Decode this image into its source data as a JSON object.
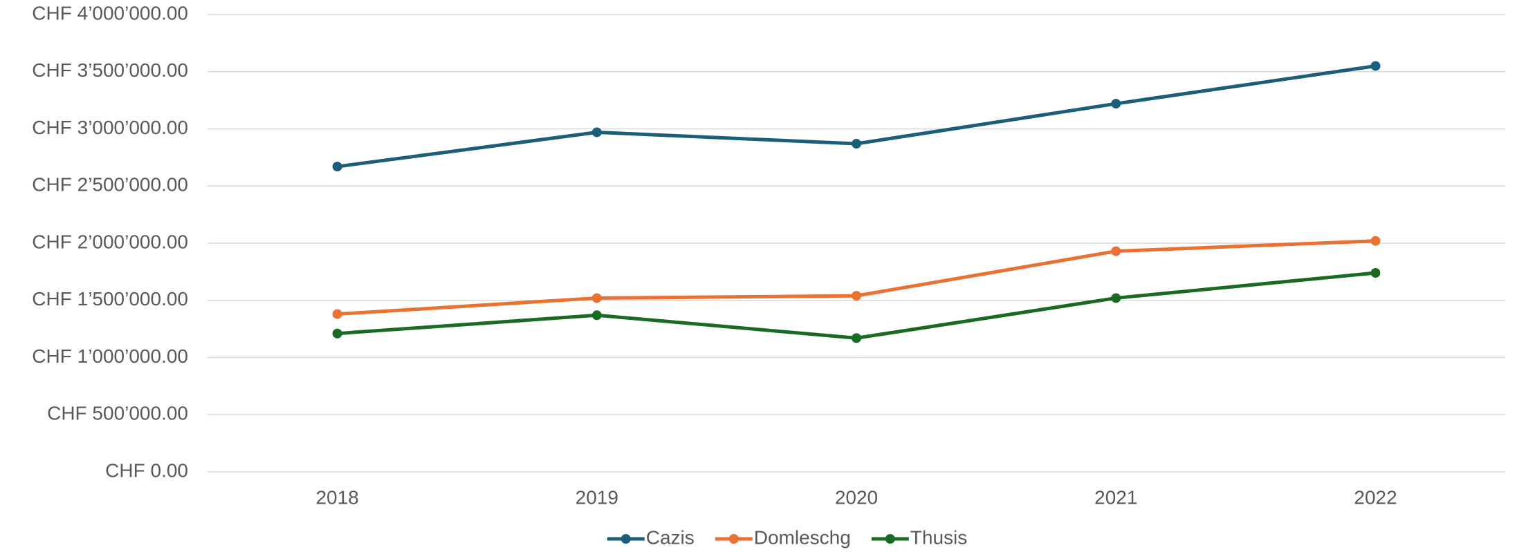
{
  "chart_data": {
    "type": "line",
    "categories": [
      "2018",
      "2019",
      "2020",
      "2021",
      "2022"
    ],
    "series": [
      {
        "name": "Cazis",
        "color": "#1b5e7b",
        "values": [
          2670000,
          2970000,
          2870000,
          3220000,
          3550000
        ]
      },
      {
        "name": "Domleschg",
        "color": "#e97132",
        "values": [
          1380000,
          1520000,
          1540000,
          1930000,
          2020000
        ]
      },
      {
        "name": "Thusis",
        "color": "#196b24",
        "values": [
          1210000,
          1370000,
          1170000,
          1520000,
          1740000
        ]
      }
    ],
    "ylim": [
      0,
      4000000
    ],
    "yticks": [
      {
        "value": 0,
        "label": "CHF 0.00"
      },
      {
        "value": 500000,
        "label": "CHF 500’000.00"
      },
      {
        "value": 1000000,
        "label": "CHF 1’000’000.00"
      },
      {
        "value": 1500000,
        "label": "CHF 1’500’000.00"
      },
      {
        "value": 2000000,
        "label": "CHF 2’000’000.00"
      },
      {
        "value": 2500000,
        "label": "CHF 2’500’000.00"
      },
      {
        "value": 3000000,
        "label": "CHF 3’000’000.00"
      },
      {
        "value": 3500000,
        "label": "CHF 3’500’000.00"
      },
      {
        "value": 4000000,
        "label": "CHF 4’000’000.00"
      }
    ],
    "grid": true,
    "legend": "bottom"
  }
}
